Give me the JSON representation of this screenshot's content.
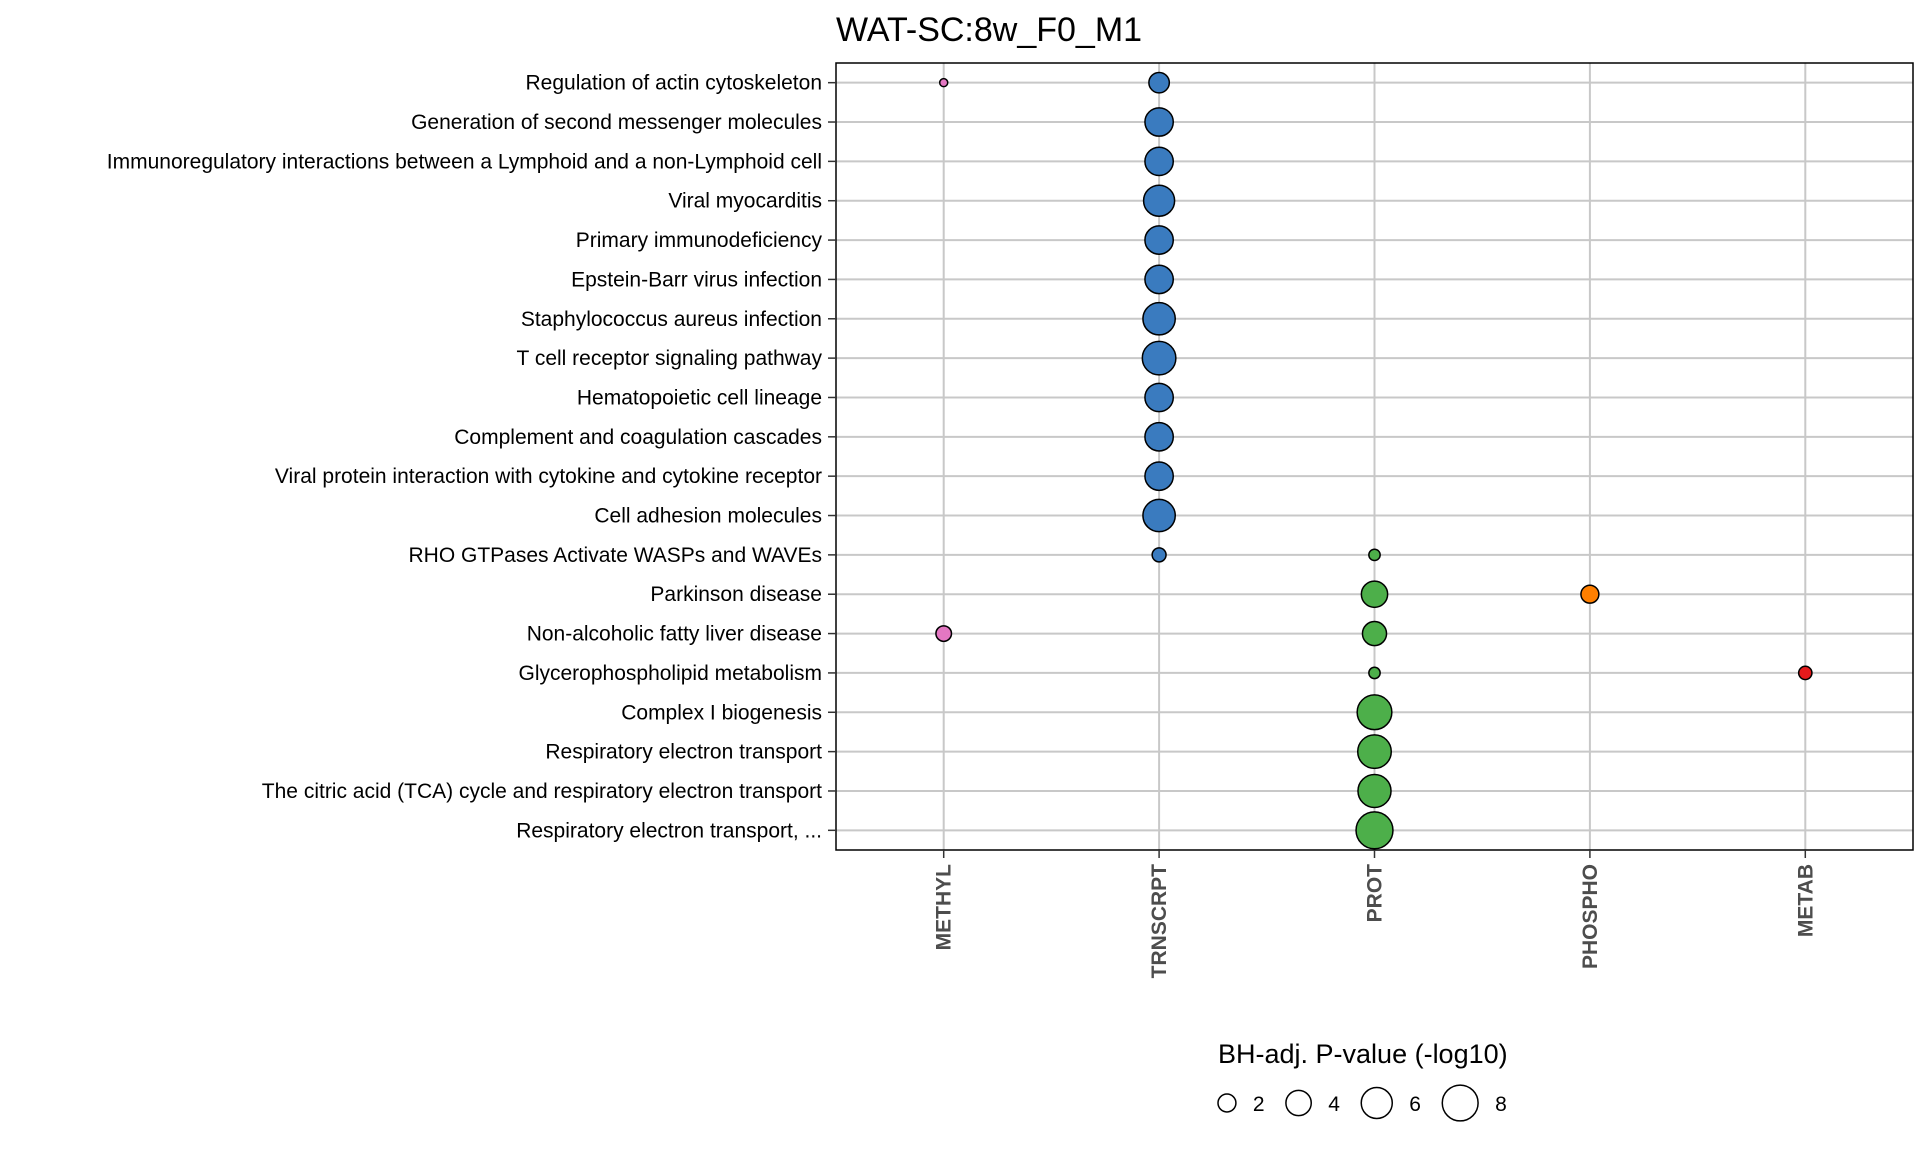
{
  "chart_data": {
    "type": "scatter",
    "title": "WAT-SC:8w_F0_M1",
    "rows": [
      "Regulation of actin cytoskeleton",
      "Generation of second messenger molecules",
      "Immunoregulatory interactions between a Lymphoid and a non-Lymphoid cell",
      "Viral myocarditis",
      "Primary immunodeficiency",
      "Epstein-Barr virus infection",
      "Staphylococcus aureus infection",
      "T cell receptor signaling pathway",
      "Hematopoietic cell lineage",
      "Complement and coagulation cascades",
      "Viral protein interaction with cytokine and cytokine receptor",
      "Cell adhesion molecules",
      "RHO GTPases Activate WASPs and WAVEs",
      "Parkinson disease",
      "Non-alcoholic fatty liver disease",
      "Glycerophospholipid metabolism",
      "Complex I biogenesis",
      "Respiratory electron transport",
      "The citric acid (TCA) cycle and respiratory electron transport",
      "Respiratory electron transport, ..."
    ],
    "columns": [
      "METHYL",
      "TRNSCRPT",
      "PROT",
      "PHOSPHO",
      "METAB"
    ],
    "colors": {
      "METHYL": "#e377c2",
      "TRNSCRPT": "#3a7bbf",
      "PROT": "#4daf4a",
      "PHOSPHO": "#ff7f00",
      "METAB": "#e41a1c"
    },
    "points": [
      {
        "row": "Regulation of actin cytoskeleton",
        "col": "METHYL",
        "value": 0.4
      },
      {
        "row": "Regulation of actin cytoskeleton",
        "col": "TRNSCRPT",
        "value": 2.6
      },
      {
        "row": "Generation of second messenger molecules",
        "col": "TRNSCRPT",
        "value": 5.0
      },
      {
        "row": "Immunoregulatory interactions between a Lymphoid and a non-Lymphoid cell",
        "col": "TRNSCRPT",
        "value": 5.0
      },
      {
        "row": "Viral myocarditis",
        "col": "TRNSCRPT",
        "value": 6.0
      },
      {
        "row": "Primary immunodeficiency",
        "col": "TRNSCRPT",
        "value": 5.0
      },
      {
        "row": "Epstein-Barr virus infection",
        "col": "TRNSCRPT",
        "value": 5.0
      },
      {
        "row": "Staphylococcus aureus infection",
        "col": "TRNSCRPT",
        "value": 6.5
      },
      {
        "row": "T cell receptor signaling pathway",
        "col": "TRNSCRPT",
        "value": 7.0
      },
      {
        "row": "Hematopoietic cell lineage",
        "col": "TRNSCRPT",
        "value": 5.0
      },
      {
        "row": "Complement and coagulation cascades",
        "col": "TRNSCRPT",
        "value": 5.0
      },
      {
        "row": "Viral protein interaction with cytokine and cytokine receptor",
        "col": "TRNSCRPT",
        "value": 5.0
      },
      {
        "row": "Cell adhesion molecules",
        "col": "TRNSCRPT",
        "value": 6.5
      },
      {
        "row": "RHO GTPases Activate WASPs and WAVEs",
        "col": "TRNSCRPT",
        "value": 1.2
      },
      {
        "row": "RHO GTPases Activate WASPs and WAVEs",
        "col": "PROT",
        "value": 0.8
      },
      {
        "row": "Parkinson disease",
        "col": "PROT",
        "value": 4.3
      },
      {
        "row": "Parkinson disease",
        "col": "PHOSPHO",
        "value": 2.0
      },
      {
        "row": "Non-alcoholic fatty liver disease",
        "col": "METHYL",
        "value": 1.5
      },
      {
        "row": "Non-alcoholic fatty liver disease",
        "col": "PROT",
        "value": 3.6
      },
      {
        "row": "Glycerophospholipid metabolism",
        "col": "PROT",
        "value": 0.8
      },
      {
        "row": "Glycerophospholipid metabolism",
        "col": "METAB",
        "value": 1.1
      },
      {
        "row": "Complex I biogenesis",
        "col": "PROT",
        "value": 7.5
      },
      {
        "row": "Respiratory electron transport",
        "col": "PROT",
        "value": 7.0
      },
      {
        "row": "The citric acid (TCA) cycle and respiratory electron transport",
        "col": "PROT",
        "value": 6.8
      },
      {
        "row": "Respiratory electron transport, ...",
        "col": "PROT",
        "value": 8.5
      }
    ],
    "size_legend": {
      "title": "BH-adj. P-value (-log10)",
      "breaks": [
        2,
        4,
        6,
        8
      ]
    },
    "grid": true,
    "legend_position": "bottom"
  }
}
